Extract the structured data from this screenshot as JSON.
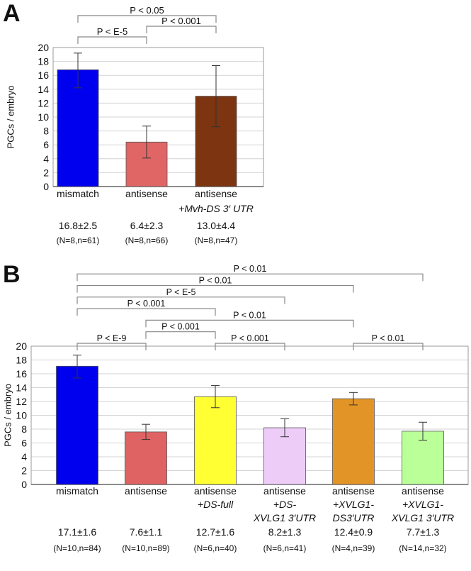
{
  "chart_data": [
    {
      "panel": "A",
      "type": "bar",
      "ylabel": "PGCs / embryo",
      "ylim": [
        0,
        20
      ],
      "yticks": [
        0,
        2,
        4,
        6,
        8,
        10,
        12,
        14,
        16,
        18,
        20
      ],
      "grid": true,
      "categories": [
        [
          "mismatch"
        ],
        [
          "antisense"
        ],
        [
          "antisense",
          "+Mvh-DS 3′ UTR"
        ]
      ],
      "values": [
        16.8,
        6.4,
        13.0
      ],
      "error_low": [
        14.2,
        4.1,
        8.6
      ],
      "error_high": [
        19.2,
        8.7,
        17.4
      ],
      "value_labels": [
        "16.8±2.5",
        "6.4±2.3",
        "13.0±4.4"
      ],
      "n_labels": [
        "(N=8,n=61)",
        "(N=8,n=66)",
        "(N=8,n=47)"
      ],
      "colors": [
        "#0000ee",
        "#e06666",
        "#7d3410"
      ],
      "comparisons": [
        {
          "from": 0,
          "to": 1,
          "label": "P < E-5"
        },
        {
          "from": 1,
          "to": 2,
          "label": "P < 0.001"
        },
        {
          "from": 0,
          "to": 2,
          "label": "P < 0.05"
        }
      ]
    },
    {
      "panel": "B",
      "type": "bar",
      "ylabel": "PGCs / embryo",
      "ylim": [
        0,
        20
      ],
      "yticks": [
        0,
        2,
        4,
        6,
        8,
        10,
        12,
        14,
        16,
        18,
        20
      ],
      "grid": true,
      "categories": [
        [
          "mismatch"
        ],
        [
          "antisense"
        ],
        [
          "antisense",
          "+DS-full"
        ],
        [
          "antisense",
          "+DS-",
          "XVLG1 3′UTR"
        ],
        [
          "antisense",
          "+XVLG1-",
          "DS3′UTR"
        ],
        [
          "antisense",
          "+XVLG1-",
          "XVLG1 3′UTR"
        ]
      ],
      "values": [
        17.1,
        7.6,
        12.7,
        8.2,
        12.4,
        7.7
      ],
      "error_low": [
        15.4,
        6.5,
        11.1,
        6.9,
        11.5,
        6.4
      ],
      "error_high": [
        18.7,
        8.7,
        14.3,
        9.5,
        13.3,
        9.0
      ],
      "value_labels": [
        "17.1±1.6",
        "7.6±1.1",
        "12.7±1.6",
        "8.2±1.3",
        "12.4±0.9",
        "7.7±1.3"
      ],
      "n_labels": [
        "(N=10,n=84)",
        "(N=10,n=89)",
        "(N=6,n=40)",
        "(N=6,n=41)",
        "(N=4,n=39)",
        "(N=14,n=32)"
      ],
      "colors": [
        "#0000ee",
        "#e06363",
        "#ffff33",
        "#eeccf8",
        "#e39426",
        "#bbff99"
      ],
      "comparisons": [
        {
          "from": 0,
          "to": 1,
          "label": "P < E-9"
        },
        {
          "from": 2,
          "to": 3,
          "label": "P < 0.001"
        },
        {
          "from": 4,
          "to": 5,
          "label": "P < 0.01"
        },
        {
          "from": 1,
          "to": 2,
          "label": "P < 0.001"
        },
        {
          "from": 1,
          "to": 4,
          "label": "P < 0.01"
        },
        {
          "from": 0,
          "to": 2,
          "label": "P < 0.001"
        },
        {
          "from": 0,
          "to": 3,
          "label": "P < E-5"
        },
        {
          "from": 0,
          "to": 4,
          "label": "P < 0.01"
        },
        {
          "from": 0,
          "to": 5,
          "label": "P < 0.01"
        }
      ]
    }
  ]
}
